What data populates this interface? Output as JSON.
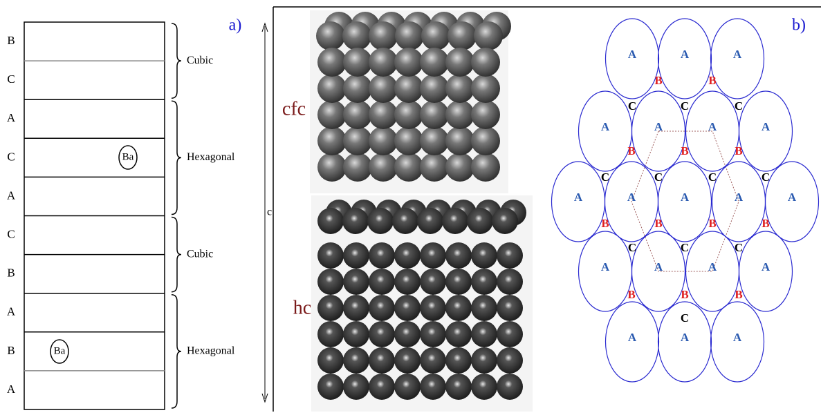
{
  "panel_a": {
    "label": "a)",
    "layers": [
      "B",
      "C",
      "A",
      "C",
      "A",
      "C",
      "B",
      "A",
      "B",
      "A"
    ],
    "groups": [
      "Cubic",
      "Hexagonal",
      "Cubic",
      "Hexagonal"
    ],
    "atoms": [
      "Ba",
      "Ba"
    ]
  },
  "panel_b": {
    "label": "b)",
    "axis_label": "c",
    "structures": [
      "cfc",
      "hc"
    ],
    "a_sites": [
      "A",
      "A",
      "A",
      "A",
      "A",
      "A",
      "A",
      "A",
      "A",
      "A",
      "A",
      "A",
      "A",
      "A",
      "A",
      "A",
      "A",
      "A",
      "A"
    ],
    "b_sites": [
      "B",
      "B",
      "B",
      "B",
      "B",
      "B",
      "B",
      "B",
      "B",
      "B",
      "B",
      "B"
    ],
    "c_sites": [
      "C",
      "C",
      "C",
      "C",
      "C",
      "C",
      "C",
      "C",
      "C",
      "C",
      "C"
    ]
  }
}
